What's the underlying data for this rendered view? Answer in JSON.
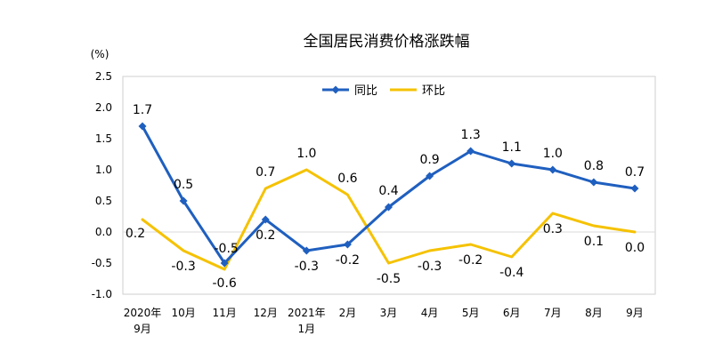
{
  "chart_data": {
    "type": "line",
    "title": "全国居民消费价格涨跌幅",
    "unit": "(%)",
    "categories": [
      {
        "line1": "2020年",
        "line2": "9月"
      },
      {
        "line1": "10月",
        "line2": ""
      },
      {
        "line1": "11月",
        "line2": ""
      },
      {
        "line1": "12月",
        "line2": ""
      },
      {
        "line1": "2021年",
        "line2": "1月"
      },
      {
        "line1": "2月",
        "line2": ""
      },
      {
        "line1": "3月",
        "line2": ""
      },
      {
        "line1": "4月",
        "line2": ""
      },
      {
        "line1": "5月",
        "line2": ""
      },
      {
        "line1": "6月",
        "line2": ""
      },
      {
        "line1": "7月",
        "line2": ""
      },
      {
        "line1": "8月",
        "line2": ""
      },
      {
        "line1": "9月",
        "line2": ""
      }
    ],
    "ylim": [
      -1.0,
      2.5
    ],
    "yticks": [
      "-1.0",
      "-0.5",
      "0.0",
      "0.5",
      "1.0",
      "1.5",
      "2.0",
      "2.5"
    ],
    "legend_position": "top-center",
    "series": [
      {
        "name": "同比",
        "color": "#1f5fbf",
        "marker": "diamond",
        "values": [
          1.7,
          0.5,
          -0.5,
          0.2,
          -0.3,
          -0.2,
          0.4,
          0.9,
          1.3,
          1.1,
          1.0,
          0.8,
          0.7
        ],
        "labels": [
          "1.7",
          "0.5",
          "-0.5",
          "0.2",
          "-0.3",
          "-0.2",
          "0.4",
          "0.9",
          "1.3",
          "1.1",
          "1.0",
          "0.8",
          "0.7"
        ]
      },
      {
        "name": "环比",
        "color": "#f5c200",
        "marker": "none",
        "values": [
          0.2,
          -0.3,
          -0.6,
          0.7,
          1.0,
          0.6,
          -0.5,
          -0.3,
          -0.2,
          -0.4,
          0.3,
          0.1,
          0.0
        ],
        "labels": [
          "0.2",
          "-0.3",
          "-0.6",
          "0.7",
          "1.0",
          "0.6",
          "-0.5",
          "-0.3",
          "-0.2",
          "-0.4",
          "0.3",
          "0.1",
          "0.0"
        ]
      }
    ]
  }
}
